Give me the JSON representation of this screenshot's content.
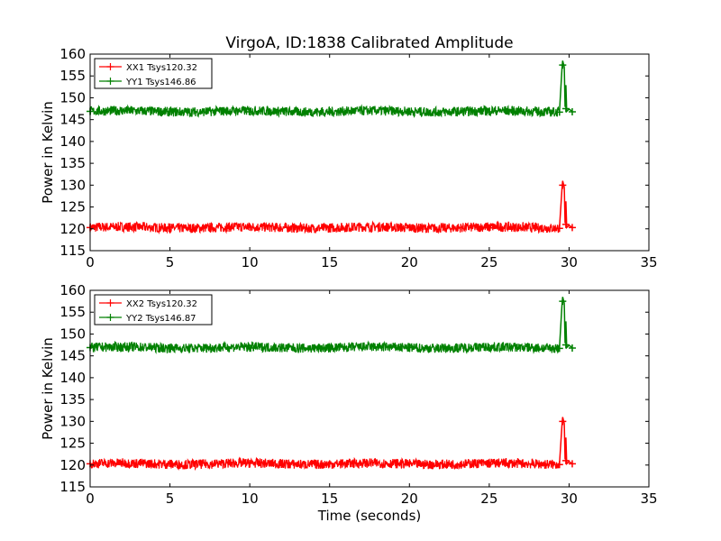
{
  "title": "VirgoA, ID:1838 Calibrated Amplitude",
  "colors": {
    "xx": "#ff0000",
    "yy": "#008000"
  },
  "chart_data": [
    {
      "type": "line",
      "title": "VirgoA, ID:1838 Calibrated Amplitude",
      "xlabel": "",
      "ylabel": "Power in Kelvin",
      "xlim": [
        0,
        35
      ],
      "ylim": [
        115,
        160
      ],
      "xticks": [
        0,
        5,
        10,
        15,
        20,
        25,
        30,
        35
      ],
      "yticks": [
        115,
        120,
        125,
        130,
        135,
        140,
        145,
        150,
        155,
        160
      ],
      "grid": false,
      "legend_position": "top-left",
      "series": [
        {
          "name": "XX1 Tsys120.32",
          "color": "#ff0000",
          "marker": "+",
          "x": [
            0,
            5,
            10,
            15,
            20,
            25,
            29.4,
            29.6,
            29.8,
            30.2
          ],
          "y": [
            120.3,
            120.4,
            120.4,
            120.3,
            120.3,
            120.2,
            120.1,
            130.0,
            121.0,
            120.3
          ]
        },
        {
          "name": "YY1 Tsys146.86",
          "color": "#008000",
          "marker": "+",
          "x": [
            0,
            5,
            10,
            15,
            20,
            25,
            29.4,
            29.6,
            29.8,
            30.2
          ],
          "y": [
            146.9,
            146.9,
            146.8,
            146.8,
            146.9,
            146.8,
            146.7,
            157.5,
            147.5,
            146.8
          ]
        }
      ]
    },
    {
      "type": "line",
      "title": "",
      "xlabel": "Time (seconds)",
      "ylabel": "Power in Kelvin",
      "xlim": [
        0,
        35
      ],
      "ylim": [
        115,
        160
      ],
      "xticks": [
        0,
        5,
        10,
        15,
        20,
        25,
        30,
        35
      ],
      "yticks": [
        115,
        120,
        125,
        130,
        135,
        140,
        145,
        150,
        155,
        160
      ],
      "grid": false,
      "legend_position": "top-left",
      "series": [
        {
          "name": "XX2 Tsys120.32",
          "color": "#ff0000",
          "marker": "+",
          "x": [
            0,
            5,
            10,
            15,
            20,
            25,
            29.4,
            29.6,
            29.8,
            30.2
          ],
          "y": [
            120.3,
            120.4,
            120.4,
            120.3,
            120.3,
            120.2,
            120.1,
            130.0,
            121.0,
            120.3
          ]
        },
        {
          "name": "YY2 Tsys146.87",
          "color": "#008000",
          "marker": "+",
          "x": [
            0,
            5,
            10,
            15,
            20,
            25,
            29.4,
            29.6,
            29.8,
            30.2
          ],
          "y": [
            146.9,
            146.9,
            146.8,
            146.8,
            146.9,
            146.8,
            146.7,
            157.5,
            147.5,
            146.8
          ]
        }
      ]
    }
  ]
}
